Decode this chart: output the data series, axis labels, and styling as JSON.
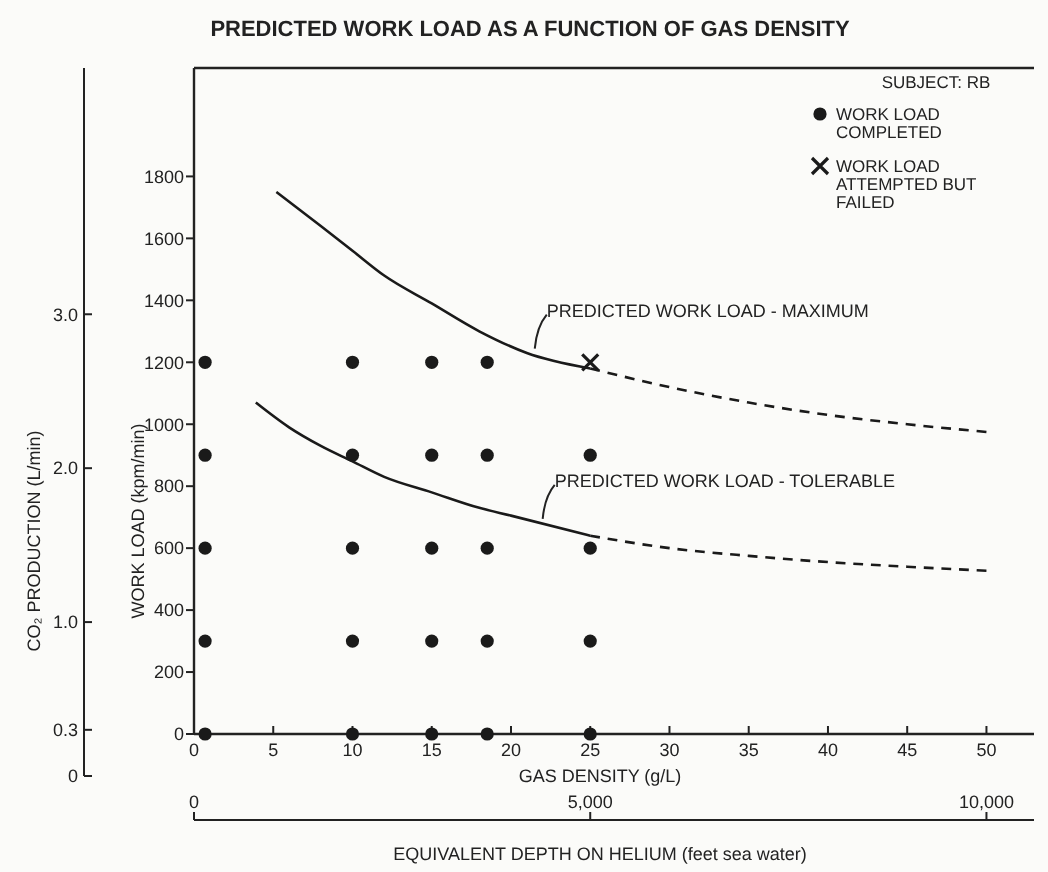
{
  "chart_data": {
    "type": "scatter",
    "title": "PREDICTED WORK LOAD AS A FUNCTION OF GAS DENSITY",
    "xlabel": "GAS DENSITY (g/L)",
    "ylabel": "WORK LOAD (kpm/min)",
    "y3label": "CO₂ PRODUCTION (L/min)",
    "x2label": "EQUIVALENT DEPTH ON HELIUM (feet sea water)",
    "legend_title": "SUBJECT: RB",
    "legend": "top right",
    "grid": false,
    "xlim": [
      0,
      53
    ],
    "xticks": [
      0,
      5,
      10,
      15,
      20,
      25,
      30,
      35,
      40,
      45,
      50
    ],
    "ylim": [
      0,
      2150
    ],
    "yticks": [
      0,
      200,
      400,
      600,
      800,
      1000,
      1200,
      1400,
      1600,
      1800
    ],
    "x2lim": [
      0,
      10600
    ],
    "x2ticks": [
      0,
      {
        "value": 5000,
        "label": "5,000"
      },
      {
        "value": 10000,
        "label": "10,000"
      }
    ],
    "y3lim": [
      0,
      4.6
    ],
    "y3ticks": [
      0,
      {
        "value": 0.3,
        "label": "0.3"
      },
      {
        "value": 1,
        "label": "1.0"
      },
      {
        "value": 2,
        "label": "2.0"
      },
      {
        "value": 3,
        "label": "3.0"
      }
    ],
    "annotations": [
      {
        "text": "PREDICTED WORK LOAD - MAXIMUM",
        "x": 21.5,
        "y": 1225
      },
      {
        "text": "PREDICTED WORK LOAD - TOLERABLE",
        "x": 22,
        "y": 675
      }
    ],
    "series": [
      {
        "name": "WORK LOAD COMPLETED",
        "type": "scatter",
        "marker": "circle",
        "color": "#1a1a1a",
        "x": [
          0.7,
          0.7,
          0.7,
          0.7,
          0.7,
          10,
          10,
          10,
          10,
          10,
          15,
          15,
          15,
          15,
          15,
          18.5,
          18.5,
          18.5,
          18.5,
          18.5,
          25,
          25,
          25,
          25
        ],
        "values": [
          1200,
          900,
          600,
          300,
          0,
          1200,
          900,
          600,
          300,
          0,
          1200,
          900,
          600,
          300,
          0,
          1200,
          900,
          600,
          300,
          0,
          900,
          600,
          300,
          0
        ]
      },
      {
        "name": "WORK LOAD ATTEMPTED BUT FAILED",
        "type": "scatter",
        "marker": "cross",
        "color": "#1a1a1a",
        "x": [
          25
        ],
        "values": [
          1200
        ]
      },
      {
        "type": "line",
        "line_style": "solid",
        "color": "#1a1a1a",
        "x": [
          5.2,
          8,
          10,
          12,
          15,
          18,
          21,
          25
        ],
        "values": [
          1750,
          1640,
          1560,
          1480,
          1390,
          1300,
          1230,
          1180
        ]
      },
      {
        "type": "line",
        "line_style": "dashed",
        "color": "#1a1a1a",
        "x": [
          25,
          30,
          35,
          40,
          45,
          50
        ],
        "values": [
          1180,
          1120,
          1070,
          1030,
          1000,
          975
        ]
      },
      {
        "type": "line",
        "line_style": "solid",
        "color": "#1a1a1a",
        "x": [
          3.9,
          6,
          8,
          10,
          12,
          15,
          18,
          20,
          25
        ],
        "values": [
          1070,
          990,
          930,
          880,
          830,
          780,
          730,
          705,
          640
        ]
      },
      {
        "type": "line",
        "line_style": "dashed",
        "color": "#1a1a1a",
        "x": [
          25,
          30,
          35,
          40,
          45,
          50
        ],
        "values": [
          640,
          600,
          575,
          555,
          540,
          527
        ]
      }
    ]
  }
}
